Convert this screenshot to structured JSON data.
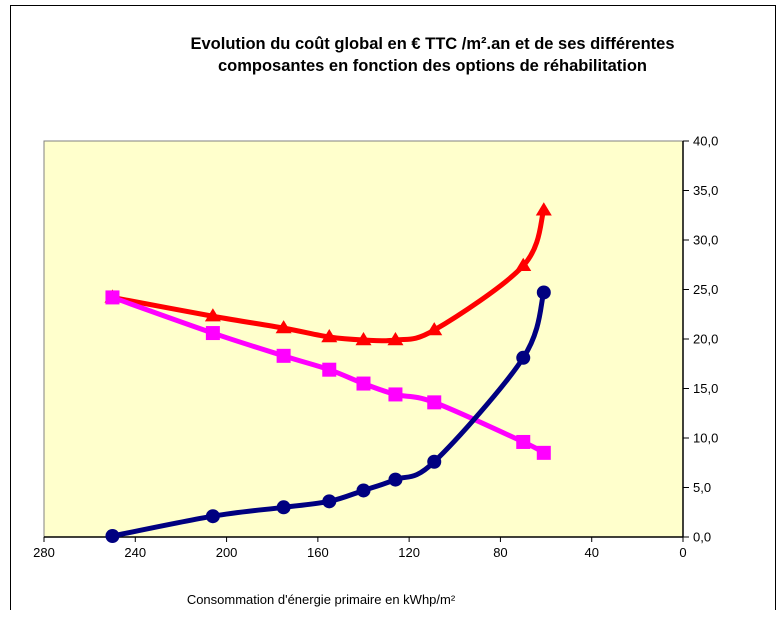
{
  "chart_data": {
    "type": "line",
    "title": "Evolution  du coût global en € TTC  /m².an et de ses différentes\ncomposantes en fonction des options de réhabilitation",
    "xlabel": "Consommation  d'énergie primaire  en kWhp/m²",
    "ylabel": "",
    "xlim": [
      280,
      0
    ],
    "ylim": [
      0,
      40
    ],
    "x_ticks": [
      "280",
      "240",
      "200",
      "160",
      "120",
      "80",
      "40",
      "0"
    ],
    "y_ticks": [
      "0,0",
      "5,0",
      "10,0",
      "15,0",
      "20,0",
      "25,0",
      "30,0",
      "35,0",
      "40,0"
    ],
    "plot_background": "#ffffcc",
    "grid": false,
    "legend": "none",
    "series": [
      {
        "color": "#ff0000",
        "marker": "triangle",
        "x": [
          250,
          206,
          175,
          155,
          140,
          126,
          109,
          70,
          61
        ],
        "y": [
          24.2,
          22.3,
          21.1,
          20.2,
          19.9,
          19.9,
          20.9,
          27.4,
          33.0
        ]
      },
      {
        "color": "#ff00ff",
        "marker": "square",
        "x": [
          250,
          206,
          175,
          155,
          140,
          126,
          109,
          70,
          61
        ],
        "y": [
          24.2,
          20.6,
          18.3,
          16.9,
          15.5,
          14.4,
          13.6,
          9.6,
          8.5
        ]
      },
      {
        "color": "#000080",
        "marker": "circle",
        "x": [
          250,
          206,
          175,
          155,
          140,
          126,
          109,
          70,
          61
        ],
        "y": [
          0.1,
          2.1,
          3.0,
          3.6,
          4.7,
          5.8,
          7.6,
          18.1,
          24.7
        ]
      }
    ]
  }
}
